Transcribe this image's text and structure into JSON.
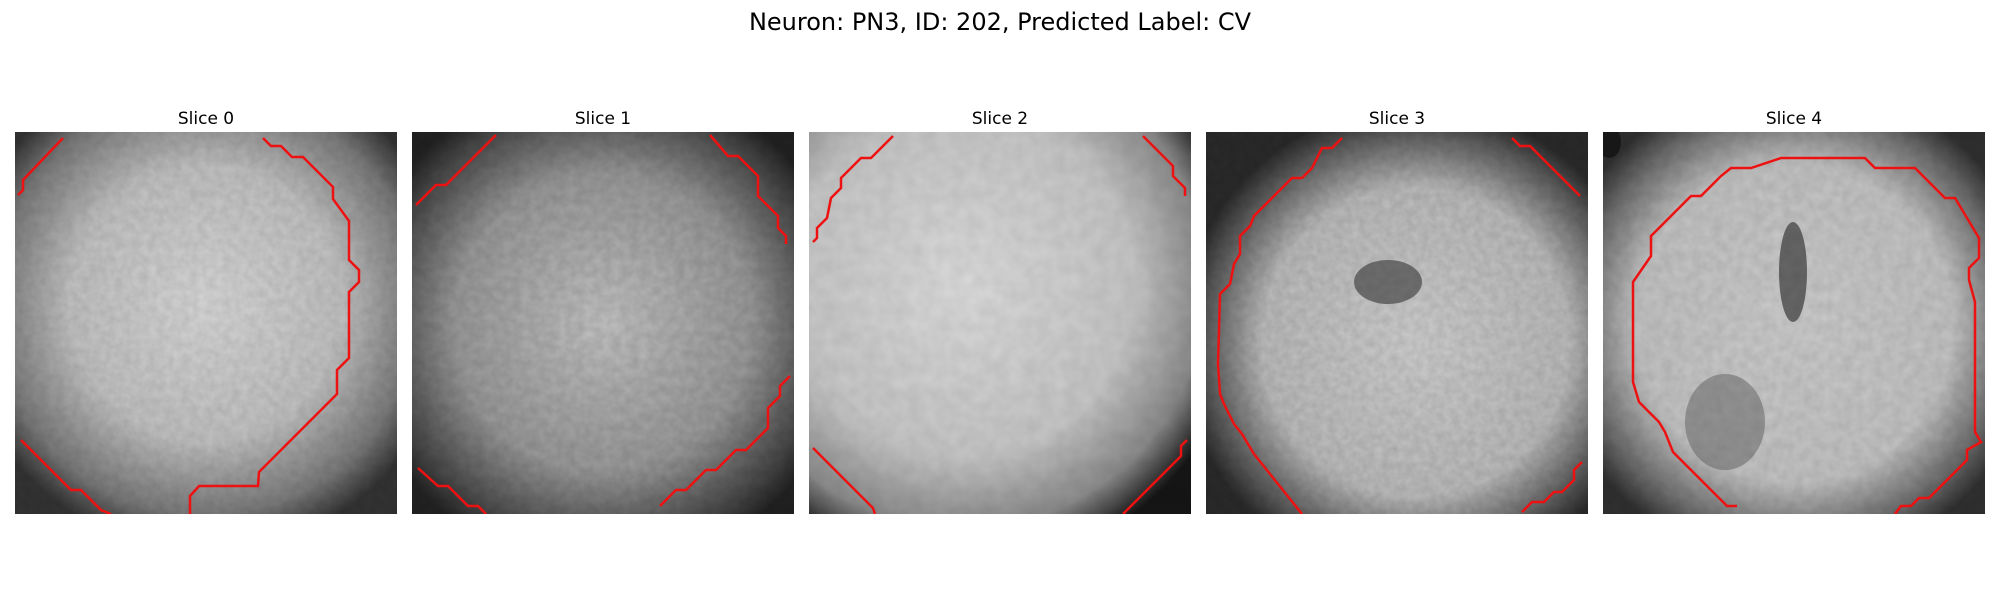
{
  "title": "Neuron: PN3, ID: 202, Predicted Label: CV",
  "panels": [
    {
      "label": "Slice 0"
    },
    {
      "label": "Slice 1"
    },
    {
      "label": "Slice 2"
    },
    {
      "label": "Slice 3"
    },
    {
      "label": "Slice 4"
    }
  ],
  "colors": {
    "contour": "#ee1111"
  }
}
